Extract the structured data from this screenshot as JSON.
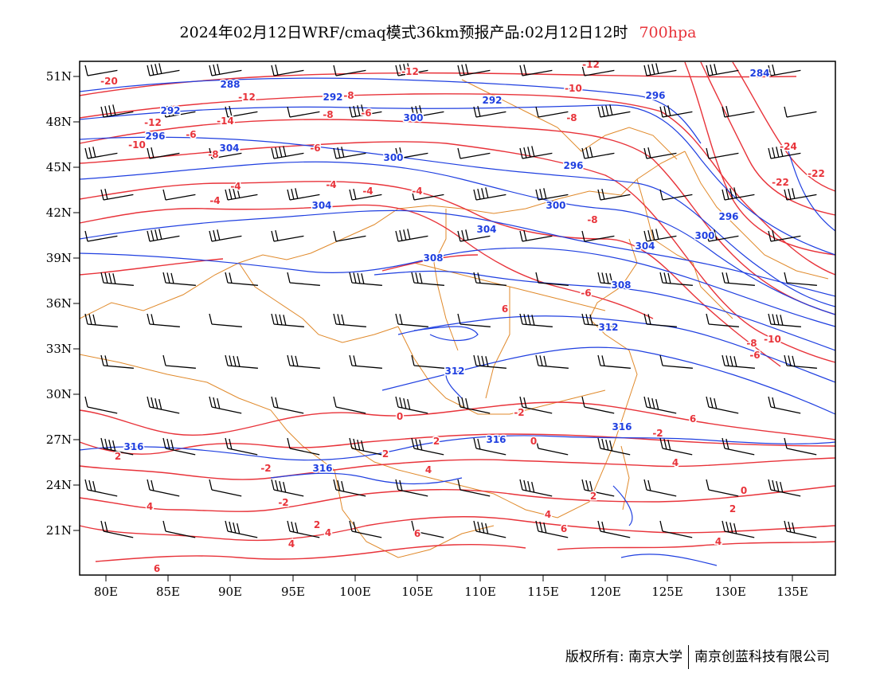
{
  "title": {
    "text": "2024年02月12日WRF/cmaq模式36km预报产品:02月12日12时",
    "level": "700hpa",
    "level_color": "#e8333a"
  },
  "colors": {
    "temperature": "#e8333a",
    "height": "#1f3fe0",
    "boundary": "#e0892a",
    "wind": "#000000"
  },
  "map": {
    "lon_range": [
      78,
      138
    ],
    "lat_range": [
      18,
      52
    ],
    "lon_ticks": [
      "80E",
      "85E",
      "90E",
      "95E",
      "100E",
      "105E",
      "110E",
      "115E",
      "120E",
      "125E",
      "130E",
      "135E"
    ],
    "lat_ticks": [
      "51N",
      "48N",
      "45N",
      "42N",
      "39N",
      "36N",
      "33N",
      "30N",
      "27N",
      "24N",
      "21N"
    ]
  },
  "temperature_labels": [
    "-20",
    "-12",
    "-12",
    "-8",
    "-6",
    "-14",
    "-12",
    "-8",
    "-6",
    "-10",
    "-6",
    "-8",
    "-10",
    "-12",
    "-8",
    "-4",
    "-4",
    "-4",
    "-4",
    "-4",
    "-8",
    "-24",
    "-22",
    "-22",
    "-6",
    "-10",
    "-8",
    "-6",
    "0",
    "-2",
    "0",
    "-2",
    "2",
    "-2",
    "2",
    "4",
    "2",
    "-2",
    "4",
    "0",
    "2",
    "2",
    "4",
    "4",
    "2",
    "4",
    "6",
    "6",
    "6",
    "4",
    "4",
    "6",
    "6"
  ],
  "height_labels": [
    "288",
    "292",
    "292",
    "292",
    "296",
    "300",
    "304",
    "300",
    "296",
    "304",
    "308",
    "304",
    "300",
    "296",
    "308",
    "312",
    "312",
    "316",
    "316",
    "316",
    "316",
    "304",
    "284",
    "300",
    "296"
  ],
  "footer": {
    "copyright": "版权所有: 南京大学",
    "company": "南京创蓝科技有限公司"
  }
}
